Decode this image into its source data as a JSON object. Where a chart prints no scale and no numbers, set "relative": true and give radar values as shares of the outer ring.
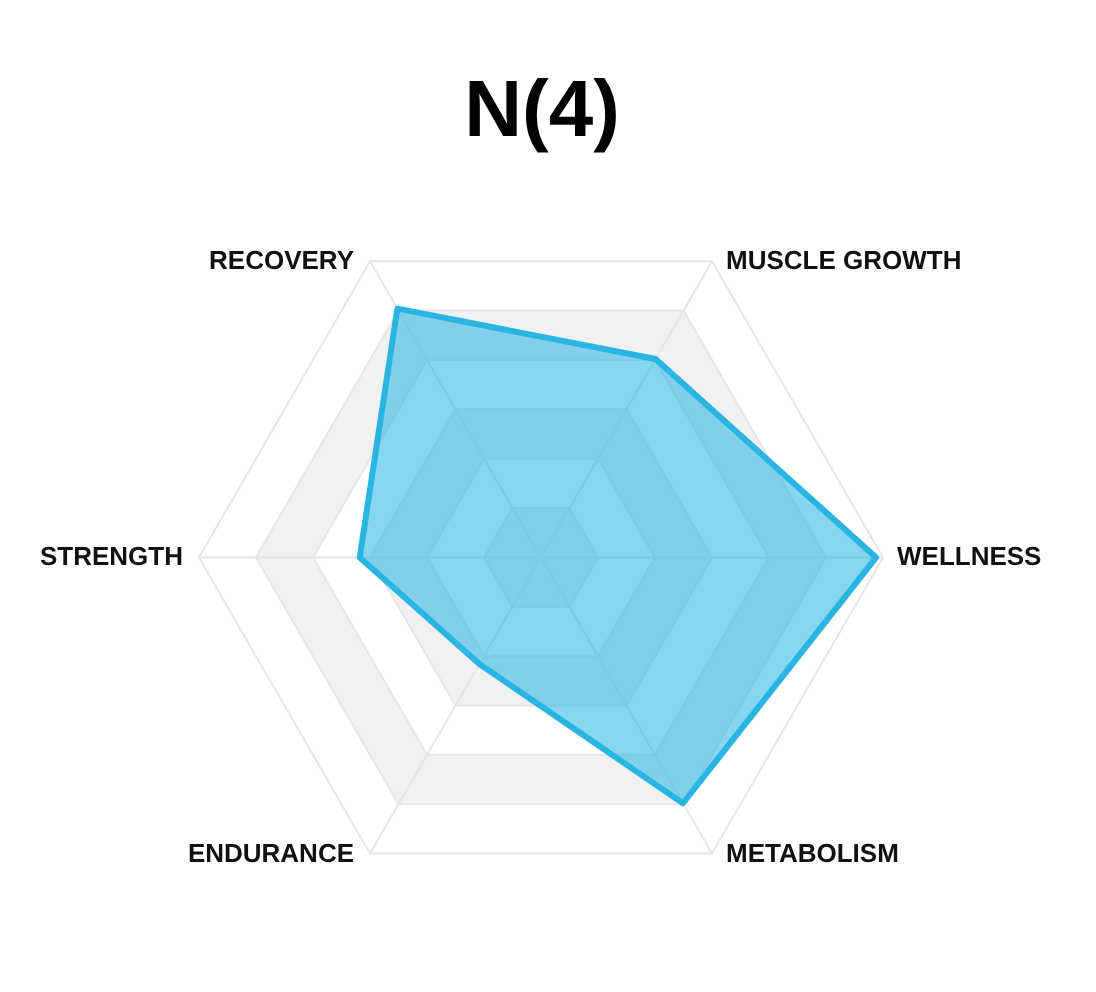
{
  "chart_data": {
    "type": "radar",
    "title": "N(4)",
    "categories": [
      "MUSCLE GROWTH",
      "WELLNESS",
      "METABOLISM",
      "ENDURANCE",
      "STRENGTH",
      "RECOVERY"
    ],
    "relative": true,
    "grid": true,
    "series": [
      {
        "color": "#29b5e2",
        "values": [
          0.67,
          0.98,
          0.83,
          0.36,
          0.53,
          0.84
        ]
      }
    ]
  }
}
